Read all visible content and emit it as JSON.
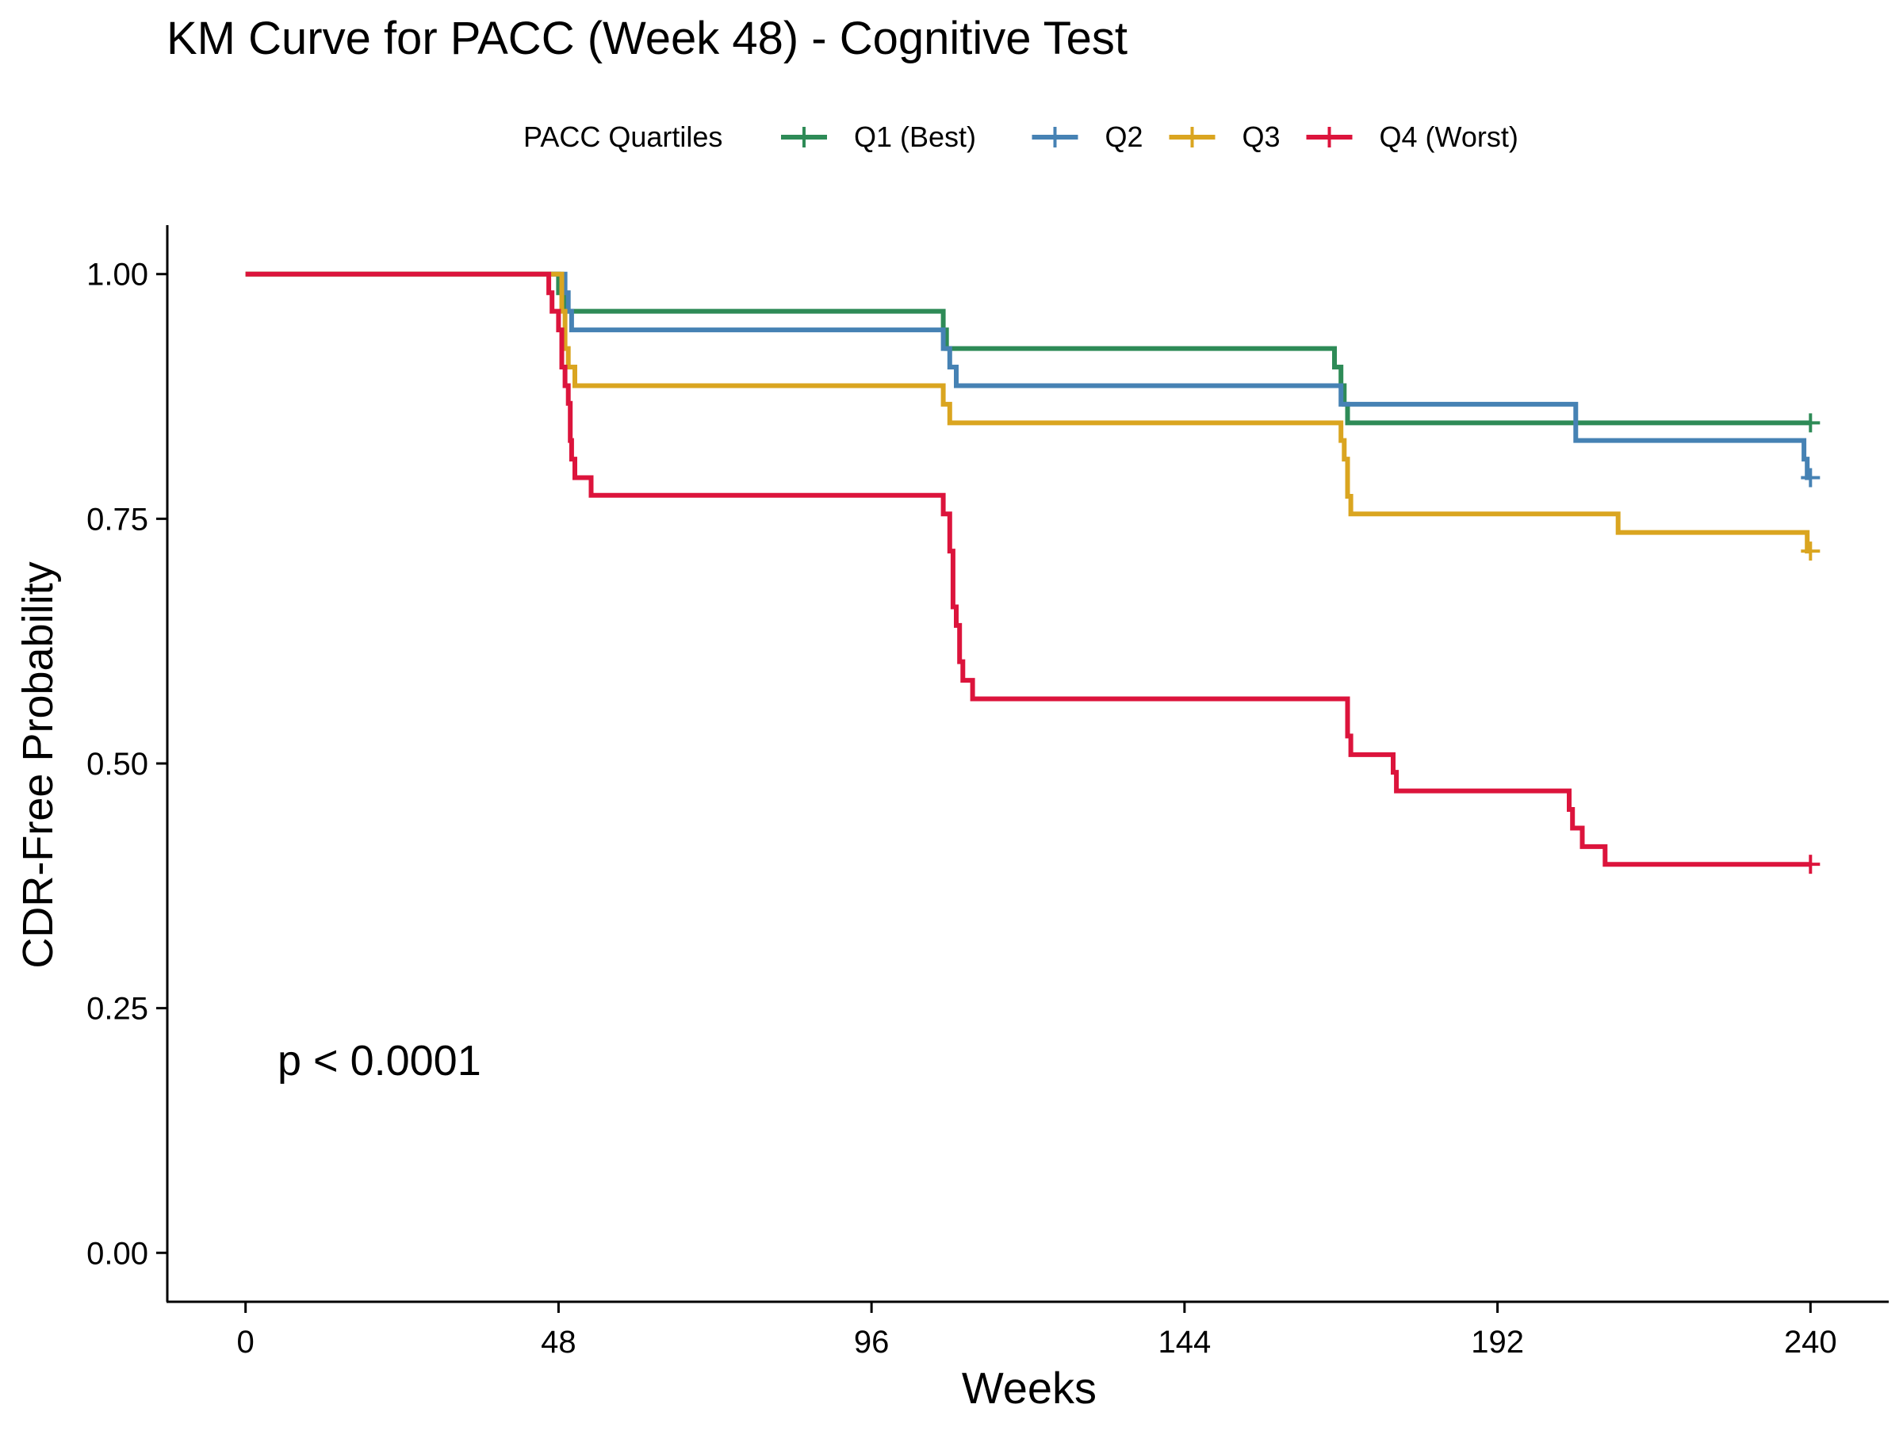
{
  "chart_data": {
    "type": "line",
    "subtype": "kaplan-meier-step",
    "title": "KM Curve for PACC (Week 48) - Cognitive Test",
    "xlabel": "Weeks",
    "ylabel": "CDR-Free Probability",
    "xlim": [
      -12,
      252
    ],
    "ylim": [
      -0.05,
      1.05
    ],
    "xticks": [
      0,
      48,
      96,
      144,
      192,
      240
    ],
    "xtick_labels": [
      "0",
      "48",
      "96",
      "144",
      "192",
      "240"
    ],
    "yticks": [
      0,
      0.25,
      0.5,
      0.75,
      1.0
    ],
    "ytick_labels": [
      "0.00",
      "0.25",
      "0.50",
      "0.75",
      "1.00"
    ],
    "grid": false,
    "legend": {
      "title": "PACC Quartiles",
      "position": "top"
    },
    "annotation": "p < 0.0001",
    "series": [
      {
        "name": "Q1 (Best)",
        "color": "#2E8B57",
        "points": [
          [
            0,
            1.0
          ],
          [
            48,
            1.0
          ],
          [
            48,
            0.981
          ],
          [
            49,
            0.981
          ],
          [
            49,
            0.962
          ],
          [
            107,
            0.962
          ],
          [
            107,
            0.943
          ],
          [
            107.5,
            0.943
          ],
          [
            107.5,
            0.924
          ],
          [
            167,
            0.924
          ],
          [
            167,
            0.905
          ],
          [
            168,
            0.905
          ],
          [
            168,
            0.886
          ],
          [
            168.5,
            0.886
          ],
          [
            168.5,
            0.867
          ],
          [
            169,
            0.867
          ],
          [
            169,
            0.848
          ],
          [
            240,
            0.848
          ]
        ],
        "censor": [
          [
            240,
            0.848
          ]
        ]
      },
      {
        "name": "Q2",
        "color": "#4682B4",
        "points": [
          [
            0,
            1.0
          ],
          [
            49,
            1.0
          ],
          [
            49,
            0.981
          ],
          [
            49.5,
            0.981
          ],
          [
            49.5,
            0.962
          ],
          [
            50,
            0.962
          ],
          [
            50,
            0.943
          ],
          [
            107,
            0.943
          ],
          [
            107,
            0.924
          ],
          [
            108,
            0.924
          ],
          [
            108,
            0.905
          ],
          [
            109,
            0.905
          ],
          [
            109,
            0.886
          ],
          [
            168,
            0.886
          ],
          [
            168,
            0.867
          ],
          [
            204,
            0.867
          ],
          [
            204,
            0.83
          ],
          [
            239,
            0.83
          ],
          [
            239,
            0.811
          ],
          [
            239.5,
            0.811
          ],
          [
            239.5,
            0.792
          ],
          [
            240,
            0.792
          ]
        ],
        "censor": [
          [
            240,
            0.792
          ]
        ]
      },
      {
        "name": "Q3",
        "color": "#DAA520",
        "points": [
          [
            0,
            1.0
          ],
          [
            48.5,
            1.0
          ],
          [
            48.5,
            0.962
          ],
          [
            49,
            0.962
          ],
          [
            49,
            0.924
          ],
          [
            49.5,
            0.924
          ],
          [
            49.5,
            0.905
          ],
          [
            50.5,
            0.905
          ],
          [
            50.5,
            0.886
          ],
          [
            107,
            0.886
          ],
          [
            107,
            0.867
          ],
          [
            108,
            0.867
          ],
          [
            108,
            0.848
          ],
          [
            168,
            0.848
          ],
          [
            168,
            0.83
          ],
          [
            168.5,
            0.83
          ],
          [
            168.5,
            0.811
          ],
          [
            169,
            0.811
          ],
          [
            169,
            0.773
          ],
          [
            169.5,
            0.773
          ],
          [
            169.5,
            0.755
          ],
          [
            210.5,
            0.755
          ],
          [
            210.5,
            0.736
          ],
          [
            239.5,
            0.736
          ],
          [
            239.5,
            0.717
          ],
          [
            240,
            0.717
          ]
        ],
        "censor": [
          [
            240,
            0.717
          ]
        ]
      },
      {
        "name": "Q4 (Worst)",
        "color": "#DC143C",
        "points": [
          [
            0,
            1.0
          ],
          [
            46.5,
            1.0
          ],
          [
            46.5,
            0.981
          ],
          [
            47,
            0.981
          ],
          [
            47,
            0.962
          ],
          [
            48,
            0.962
          ],
          [
            48,
            0.943
          ],
          [
            48.5,
            0.943
          ],
          [
            48.5,
            0.905
          ],
          [
            49,
            0.905
          ],
          [
            49,
            0.886
          ],
          [
            49.5,
            0.886
          ],
          [
            49.5,
            0.868
          ],
          [
            49.8,
            0.868
          ],
          [
            49.8,
            0.83
          ],
          [
            50,
            0.83
          ],
          [
            50,
            0.811
          ],
          [
            50.5,
            0.811
          ],
          [
            50.5,
            0.792
          ],
          [
            53,
            0.792
          ],
          [
            53,
            0.774
          ],
          [
            107,
            0.774
          ],
          [
            107,
            0.755
          ],
          [
            108,
            0.755
          ],
          [
            108,
            0.717
          ],
          [
            108.5,
            0.717
          ],
          [
            108.5,
            0.66
          ],
          [
            109,
            0.66
          ],
          [
            109,
            0.641
          ],
          [
            109.5,
            0.641
          ],
          [
            109.5,
            0.604
          ],
          [
            110,
            0.604
          ],
          [
            110,
            0.585
          ],
          [
            111.5,
            0.585
          ],
          [
            111.5,
            0.566
          ],
          [
            169,
            0.566
          ],
          [
            169,
            0.528
          ],
          [
            169.5,
            0.528
          ],
          [
            169.5,
            0.509
          ],
          [
            176,
            0.509
          ],
          [
            176,
            0.491
          ],
          [
            176.5,
            0.491
          ],
          [
            176.5,
            0.472
          ],
          [
            203,
            0.472
          ],
          [
            203,
            0.453
          ],
          [
            203.5,
            0.453
          ],
          [
            203.5,
            0.434
          ],
          [
            205,
            0.434
          ],
          [
            205,
            0.415
          ],
          [
            208.5,
            0.415
          ],
          [
            208.5,
            0.397
          ],
          [
            240,
            0.397
          ]
        ],
        "censor": [
          [
            240,
            0.397
          ]
        ]
      }
    ]
  }
}
